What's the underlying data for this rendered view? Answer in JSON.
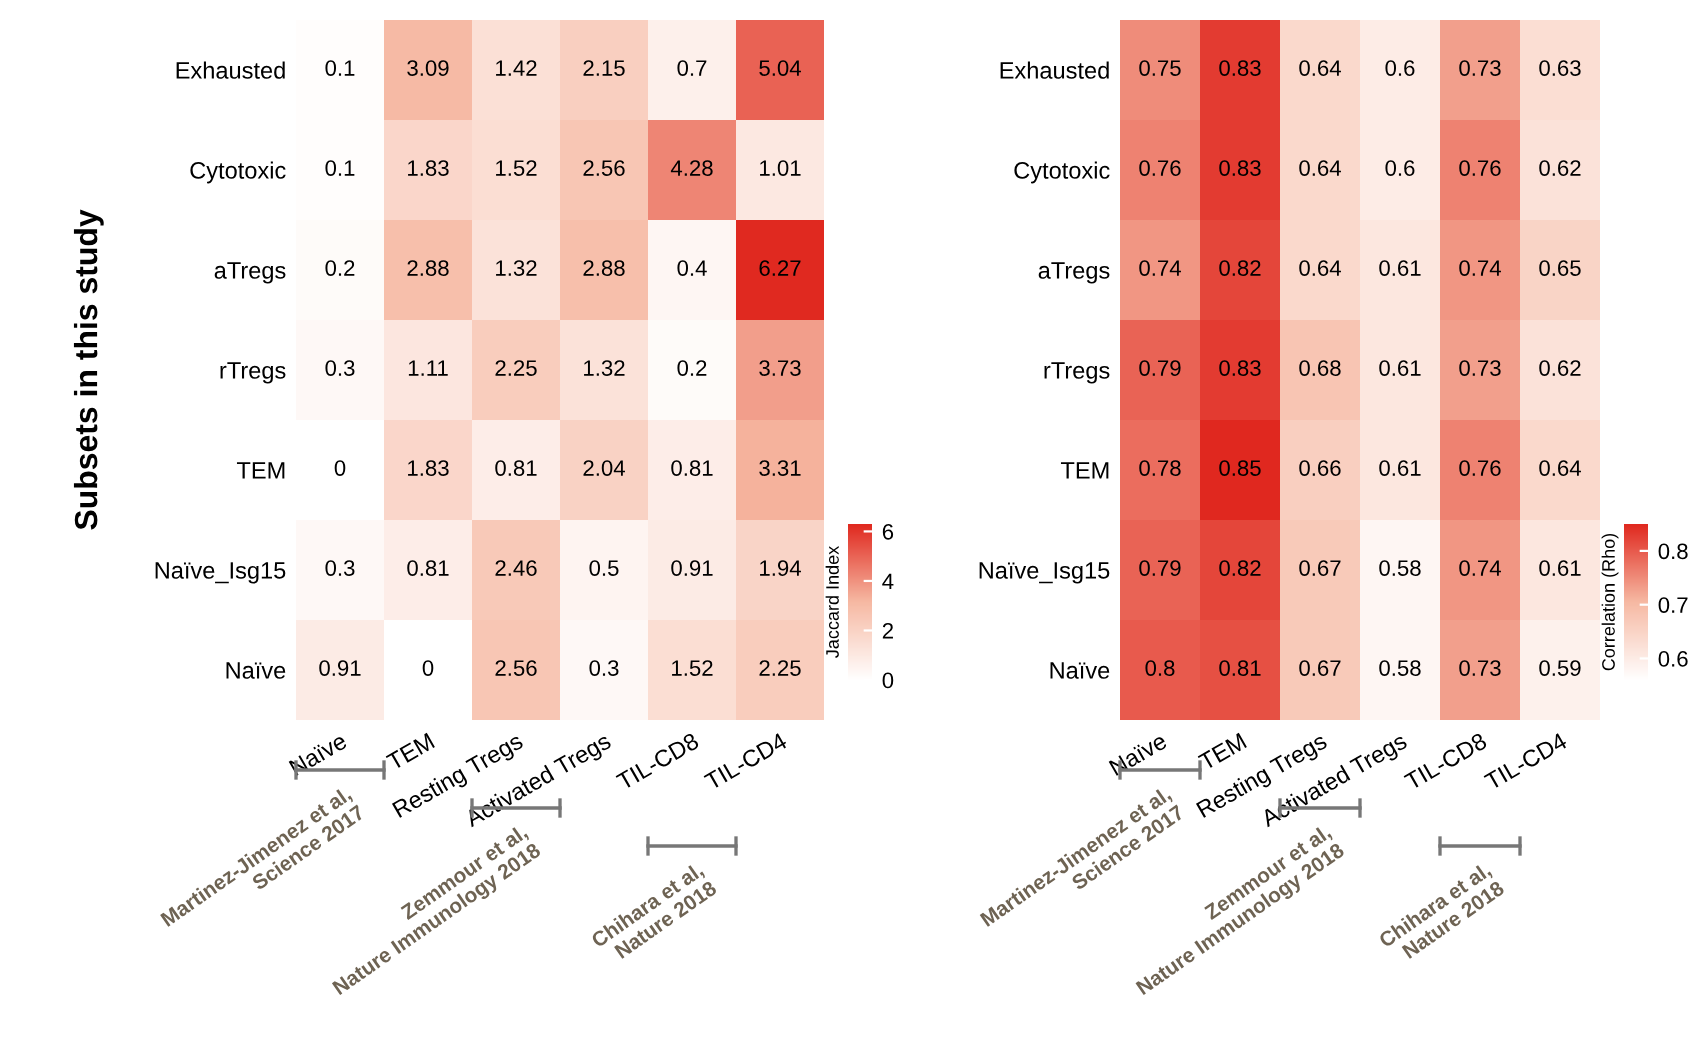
{
  "chart_data": [
    {
      "type": "heatmap",
      "ylabel": "Subsets in this study",
      "clabel": "Jaccard Index",
      "categories": [
        "Naïve",
        "TEM",
        "Resting Tregs",
        "Activated Tregs",
        "TIL-CD8",
        "TIL-CD4"
      ],
      "y_categories": [
        "Exhausted",
        "Cytotoxic",
        "aTregs",
        "rTregs",
        "TEM",
        "Naïve_Isg15",
        "Naïve"
      ],
      "cells": [
        [
          0.1,
          3.09,
          1.42,
          2.15,
          0.7,
          5.04
        ],
        [
          0.1,
          1.83,
          1.52,
          2.56,
          4.28,
          1.01
        ],
        [
          0.2,
          2.88,
          1.32,
          2.88,
          0.4,
          6.27
        ],
        [
          0.3,
          1.11,
          2.25,
          1.32,
          0.2,
          3.73
        ],
        [
          0,
          1.83,
          0.81,
          2.04,
          0.81,
          3.31
        ],
        [
          0.3,
          0.81,
          2.46,
          0.5,
          0.91,
          1.94
        ],
        [
          0.91,
          0,
          2.56,
          0.3,
          1.52,
          2.25
        ]
      ],
      "clim": [
        0,
        6.3
      ],
      "cticks": [
        0,
        2,
        4,
        6
      ],
      "data_labels": true,
      "annotations": [
        "Martinez-Jimenez et al,\nScience 2017",
        "Zemmour et al,\nNature Immunology 2018",
        "Chihara et al,\nNature 2018"
      ]
    },
    {
      "type": "heatmap",
      "clabel": "Correlation (Rho)",
      "categories": [
        "Naïve",
        "TEM",
        "Resting Tregs",
        "Activated Tregs",
        "TIL-CD8",
        "TIL-CD4"
      ],
      "y_categories": [
        "Exhausted",
        "Cytotoxic",
        "aTregs",
        "rTregs",
        "TEM",
        "Naïve_Isg15",
        "Naïve"
      ],
      "cells": [
        [
          0.75,
          0.83,
          0.64,
          0.6,
          0.73,
          0.63
        ],
        [
          0.76,
          0.83,
          0.64,
          0.6,
          0.76,
          0.62
        ],
        [
          0.74,
          0.82,
          0.64,
          0.61,
          0.74,
          0.65
        ],
        [
          0.79,
          0.83,
          0.68,
          0.61,
          0.73,
          0.62
        ],
        [
          0.78,
          0.85,
          0.66,
          0.61,
          0.76,
          0.64
        ],
        [
          0.79,
          0.82,
          0.67,
          0.58,
          0.74,
          0.61
        ],
        [
          0.8,
          0.81,
          0.67,
          0.58,
          0.73,
          0.59
        ]
      ],
      "clim": [
        0.56,
        0.85
      ],
      "cticks": [
        0.6,
        0.7,
        0.8
      ],
      "data_labels": true,
      "annotations": [
        "Martinez-Jimenez et al,\nScience 2017",
        "Zemmour et al,\nNature Immunology 2018",
        "Chihara et al,\nNature 2018"
      ]
    }
  ]
}
